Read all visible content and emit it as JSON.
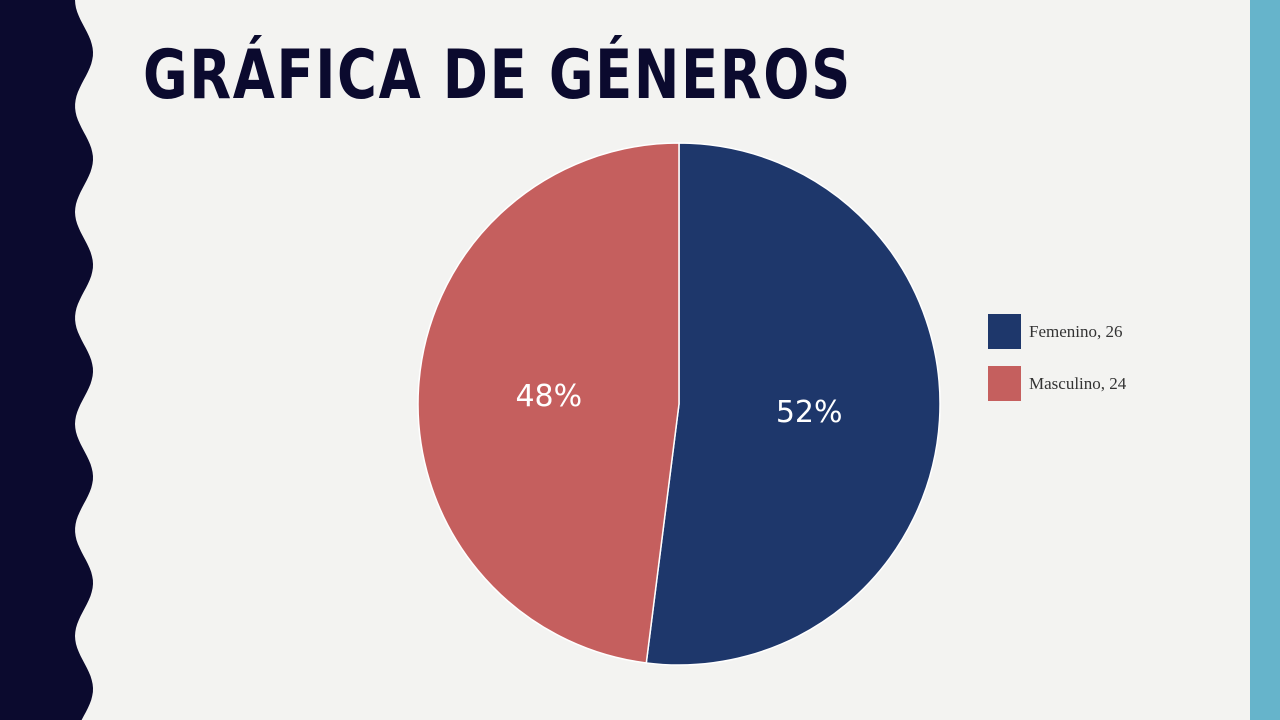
{
  "slide": {
    "title": "GRÁFICA DE GÉNEROS",
    "colors": {
      "background": "#f3f3f1",
      "left_band": "#0b0a2e",
      "right_band": "#66b4cb",
      "title": "#0b0a2e"
    }
  },
  "chart_data": {
    "type": "pie",
    "title": "GRÁFICA DE GÉNEROS",
    "categories": [
      "Femenino",
      "Masculino"
    ],
    "values": [
      26,
      24
    ],
    "percent_labels": [
      "52%",
      "48%"
    ],
    "colors": [
      "#1e376b",
      "#c55f5e"
    ],
    "legend": {
      "placement": "right",
      "entries": [
        "Femenino, 26",
        "Masculino, 24"
      ]
    }
  }
}
